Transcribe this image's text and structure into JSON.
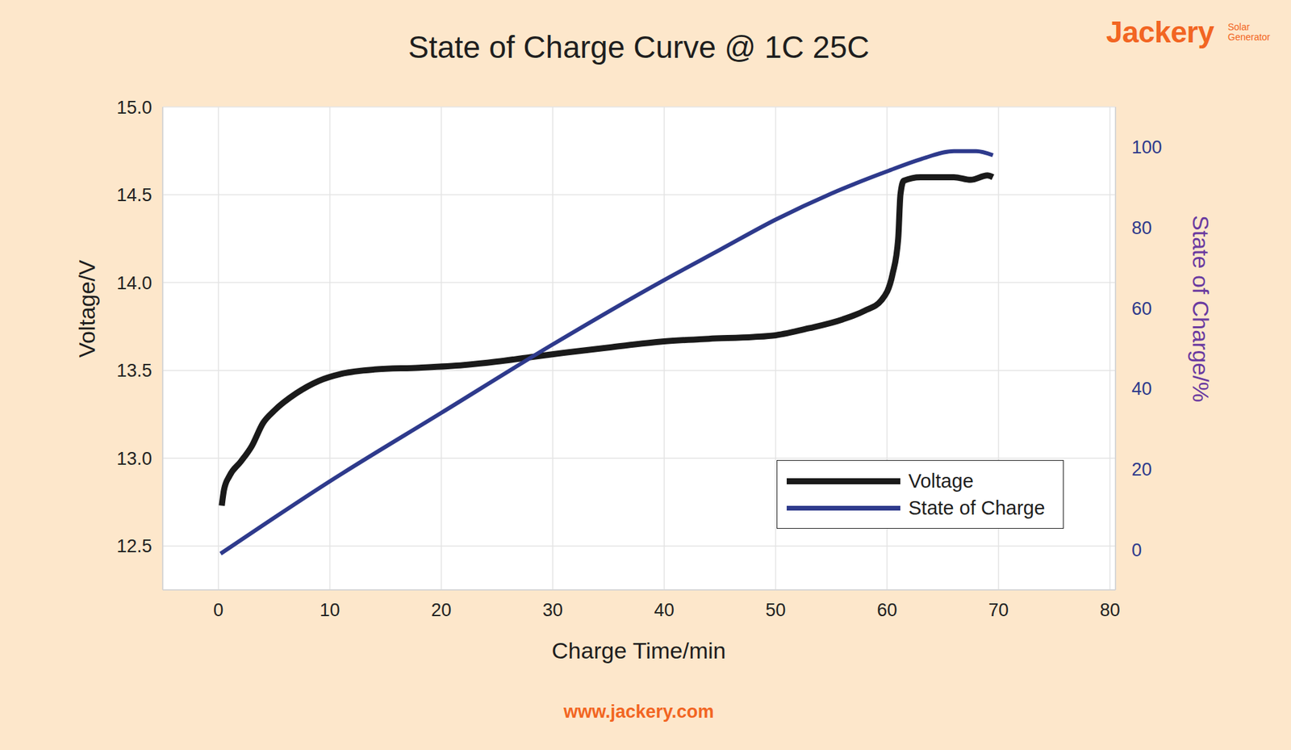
{
  "chart_data": {
    "type": "line",
    "title": "State of Charge Curve @ 1C 25C",
    "brand": "Jackery",
    "brand_tagline": [
      "Solar",
      "Generator"
    ],
    "footer": "www.jackery.com",
    "x_label": "Charge Time/min",
    "y_label": "Voltage/V",
    "y2_label": "State of Charge/%",
    "xlim": [
      -5,
      80.5
    ],
    "xticks": [
      0,
      10,
      20,
      30,
      40,
      50,
      60,
      70,
      80
    ],
    "ylim": [
      12.25,
      15.0
    ],
    "yticks": [
      12.5,
      {
        "value": 13,
        "label": "13.0"
      },
      13.5,
      {
        "value": 14,
        "label": "14.0"
      },
      14.5,
      {
        "value": 15,
        "label": "15.0"
      }
    ],
    "y2lim": [
      -10,
      110
    ],
    "y2ticks": [
      0,
      20,
      40,
      60,
      80,
      100
    ],
    "grid": true,
    "legend": "lower right",
    "series": [
      {
        "name": "Voltage",
        "color": "#1a1a1a",
        "x": [
          0.3,
          0.5,
          1,
          2,
          3,
          4,
          5,
          7,
          9,
          11,
          14,
          18,
          22,
          25,
          28,
          31,
          35,
          40,
          44,
          48,
          50,
          53,
          56,
          58,
          59.5,
          60.5,
          61,
          61.2,
          61.5,
          63,
          66,
          67.5,
          69,
          69.5
        ],
        "values": [
          12.73,
          12.82,
          12.9,
          12.98,
          13.07,
          13.2,
          13.27,
          13.37,
          13.44,
          13.48,
          13.505,
          13.515,
          13.53,
          13.55,
          13.575,
          13.6,
          13.63,
          13.665,
          13.68,
          13.69,
          13.7,
          13.74,
          13.79,
          13.84,
          13.9,
          14.05,
          14.25,
          14.5,
          14.58,
          14.6,
          14.6,
          14.585,
          14.61,
          14.6
        ]
      },
      {
        "name": "State of Charge",
        "color": "#2e3a8c",
        "axis": "y2",
        "x": [
          0.2,
          10,
          20,
          30,
          40,
          45,
          50,
          55,
          60,
          63,
          66,
          68,
          69.5
        ],
        "values": [
          -1,
          17,
          34,
          51,
          67,
          74.5,
          82,
          88.5,
          94,
          97,
          99,
          99,
          98
        ]
      }
    ]
  }
}
